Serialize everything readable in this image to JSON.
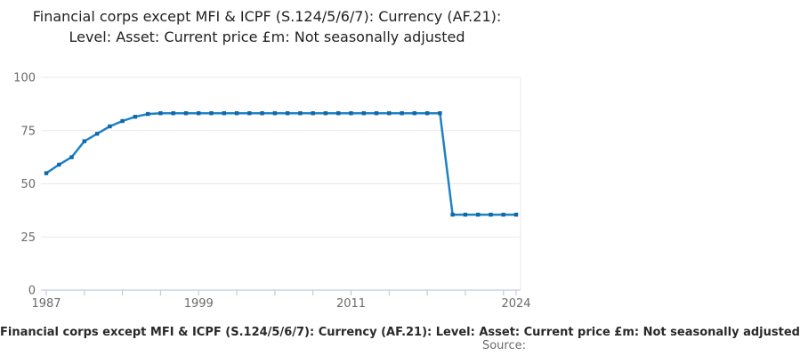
{
  "title": "Financial corps except MFI & ICPF (S.124/5/6/7): Currency (AF.21): Level: Asset: Current price £m: Not seasonally adjusted",
  "caption": "Financial corps except MFI & ICPF (S.124/5/6/7): Currency (AF.21): Level: Asset: Current price £m: Not seasonally adjusted",
  "source_label": "Source:",
  "colors": {
    "line": "#1e82c5",
    "marker": "#0f68a9",
    "grid": "#e9e9e9",
    "axis": "#c2cade",
    "tick_label": "#6b6b6b",
    "title_text": "#222222"
  },
  "chart_data": {
    "type": "line",
    "title": "Financial corps except MFI & ICPF (S.124/5/6/7): Currency (AF.21): Level: Asset: Current price £m: Not seasonally adjusted",
    "xlabel": "",
    "ylabel": "",
    "x": [
      1987,
      1988,
      1989,
      1990,
      1991,
      1992,
      1993,
      1994,
      1995,
      1996,
      1997,
      1998,
      1999,
      2000,
      2001,
      2002,
      2003,
      2004,
      2005,
      2006,
      2007,
      2008,
      2009,
      2010,
      2011,
      2012,
      2013,
      2014,
      2015,
      2016,
      2017,
      2018,
      2019,
      2020,
      2021,
      2022,
      2023,
      2024
    ],
    "values": [
      55,
      59,
      62.5,
      70,
      73.5,
      77,
      79.5,
      81.5,
      82.8,
      83.2,
      83.2,
      83.2,
      83.2,
      83.2,
      83.2,
      83.2,
      83.2,
      83.2,
      83.2,
      83.2,
      83.2,
      83.2,
      83.2,
      83.2,
      83.2,
      83.2,
      83.2,
      83.2,
      83.2,
      83.2,
      83.2,
      83.2,
      35.5,
      35.5,
      35.5,
      35.5,
      35.5,
      35.5
    ],
    "xlim": [
      1987,
      2024
    ],
    "ylim": [
      0,
      100
    ],
    "yticks": [
      0,
      25,
      50,
      75,
      100
    ],
    "xticks_minor_interval_years": 3,
    "xtick_labels": [
      "1987",
      "1999",
      "2011",
      "2024"
    ],
    "grid": "horizontal",
    "legend": "none",
    "marker": "square"
  }
}
